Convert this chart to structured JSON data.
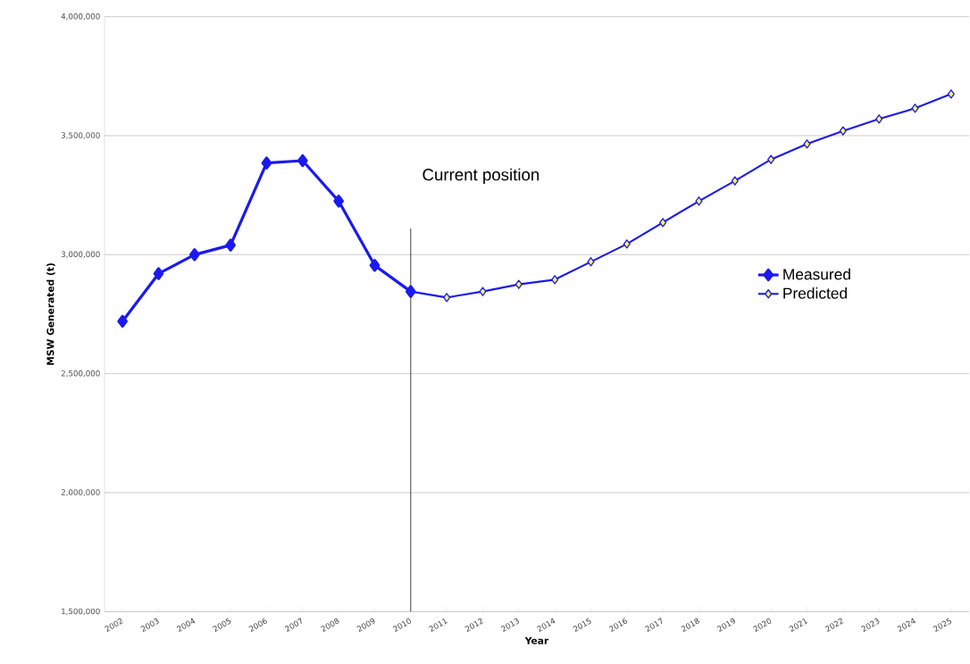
{
  "chart_data": {
    "type": "line",
    "xlabel": "Year",
    "ylabel": "MSW Generated (t)",
    "categories": [
      "2002",
      "2003",
      "2004",
      "2005",
      "2006",
      "2007",
      "2008",
      "2009",
      "2010",
      "2011",
      "2012",
      "2013",
      "2014",
      "2015",
      "2016",
      "2017",
      "2018",
      "2019",
      "2020",
      "2021",
      "2022",
      "2023",
      "2024",
      "2025"
    ],
    "series": [
      {
        "name": "Measured",
        "color": "#1a1af0",
        "values": [
          2720000,
          2920000,
          3000000,
          3040000,
          3385000,
          3395000,
          3225000,
          2955000,
          2845000,
          null,
          null,
          null,
          null,
          null,
          null,
          null,
          null,
          null,
          null,
          null,
          null,
          null,
          null,
          null
        ]
      },
      {
        "name": "Predicted",
        "color": "#1a1af0",
        "values": [
          null,
          null,
          null,
          null,
          null,
          null,
          null,
          null,
          2845000,
          2820000,
          2845000,
          2875000,
          2895000,
          2970000,
          3045000,
          3135000,
          3225000,
          3310000,
          3400000,
          3465000,
          3520000,
          3570000,
          3615000,
          3675000
        ]
      }
    ],
    "ylim": [
      1500000,
      4000000
    ],
    "yticks": [
      {
        "value": 1500000,
        "label": "1,500,000"
      },
      {
        "value": 2000000,
        "label": "2,000,000"
      },
      {
        "value": 2500000,
        "label": "2,500,000"
      },
      {
        "value": 3000000,
        "label": "3,000,000"
      },
      {
        "value": 3500000,
        "label": "3,500,000"
      },
      {
        "value": 4000000,
        "label": "4,000,000"
      }
    ],
    "ref_lines": [
      {
        "axis": "x",
        "value": "2010",
        "label": "Current position",
        "color": "#333333"
      }
    ],
    "grid": "y",
    "legend": "right",
    "marker": "diamond",
    "line_style": "solid"
  }
}
